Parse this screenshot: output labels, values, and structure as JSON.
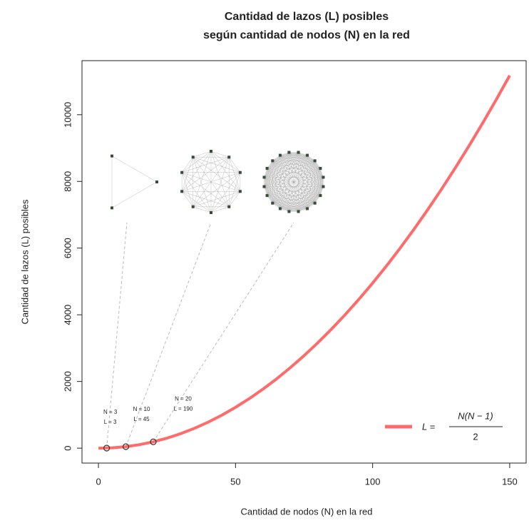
{
  "chart_data": {
    "type": "line",
    "title": [
      "Cantidad de lazos (L) posibles",
      "según cantidad de nodos (N) en la red"
    ],
    "x_label": "Cantidad de nodos (N) en la red",
    "y_label": "Cantidad de lazos (L) posibles",
    "x": [
      0,
      5,
      10,
      15,
      20,
      25,
      30,
      35,
      40,
      45,
      50,
      55,
      60,
      65,
      70,
      75,
      80,
      85,
      90,
      95,
      100,
      105,
      110,
      115,
      120,
      125,
      130,
      135,
      140,
      145,
      150
    ],
    "series": [
      {
        "color": "#ff6b6b",
        "values": [
          0,
          10,
          45,
          105,
          190,
          300,
          435,
          595,
          780,
          990,
          1225,
          1485,
          1770,
          2080,
          2415,
          2775,
          3160,
          3570,
          4005,
          4465,
          4950,
          5460,
          5995,
          6555,
          7140,
          7750,
          8385,
          9045,
          9730,
          10440,
          11175
        ]
      }
    ],
    "legend": {
      "lhs": "L =",
      "numerator": "N(N − 1)",
      "denominator": "2",
      "position": "bottom-right"
    },
    "points": {
      "x": [
        3,
        10,
        20
      ],
      "values": [
        3,
        45,
        190
      ],
      "labels": [
        [
          "N = 3",
          "L = 3"
        ],
        [
          "N = 10",
          "L = 45"
        ],
        [
          "N = 20",
          "L = 190"
        ]
      ]
    },
    "xlim": [
      -6,
      156
    ],
    "ylim": [
      -447,
      11622
    ],
    "xticks": [
      0,
      50,
      100,
      150
    ],
    "yticks": [
      0,
      2000,
      4000,
      6000,
      8000,
      10000
    ]
  }
}
